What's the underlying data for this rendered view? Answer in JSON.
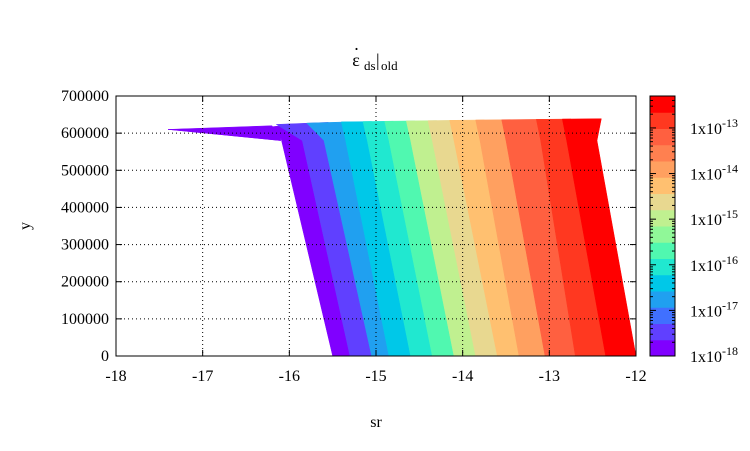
{
  "chart_data": {
    "type": "heatmap",
    "title": {
      "base": "ε",
      "sub_ds": "ds",
      "sep": "|",
      "sub_old": "old"
    },
    "xlabel": "sr",
    "ylabel": "y",
    "xlim": [
      -18,
      -12
    ],
    "ylim": [
      0,
      700000
    ],
    "x_ticks": [
      -18,
      -17,
      -16,
      -15,
      -14,
      -13,
      -12
    ],
    "x_tick_labels": [
      "-18",
      "-17",
      "-16",
      "-15",
      "-14",
      "-13",
      "-12"
    ],
    "y_ticks": [
      0,
      100000,
      200000,
      300000,
      400000,
      500000,
      600000,
      700000
    ],
    "y_tick_labels": [
      "0",
      "100000",
      "200000",
      "300000",
      "400000",
      "500000",
      "600000",
      "700000"
    ],
    "grid": true,
    "colorbar": {
      "scale": "log",
      "range_exponent": [
        -18,
        -12.3
      ],
      "tick_exponents": [
        -18,
        -17,
        -16,
        -15,
        -14,
        -13
      ],
      "tick_labels": [
        {
          "mant": "1x10",
          "exp": "-18"
        },
        {
          "mant": "1x10",
          "exp": "-17"
        },
        {
          "mant": "1x10",
          "exp": "-16"
        },
        {
          "mant": "1x10",
          "exp": "-15"
        },
        {
          "mant": "1x10",
          "exp": "-14"
        },
        {
          "mant": "1x10",
          "exp": "-13"
        }
      ],
      "colors": [
        "#8000ff",
        "#6040ff",
        "#4070ff",
        "#20a0f0",
        "#00c8e8",
        "#20e8d0",
        "#50f8b0",
        "#90f898",
        "#c0f090",
        "#e8d890",
        "#ffc070",
        "#ffa060",
        "#ff8050",
        "#ff6040",
        "#ff3820",
        "#ff0000"
      ]
    },
    "contour_band_bottom_x": [
      -15.5,
      -15.3,
      -15.05,
      -14.85,
      -14.6,
      -14.35,
      -14.1,
      -13.85,
      -13.6,
      -13.35,
      -13.05,
      -12.7,
      -12.35,
      -12.0
    ],
    "contour_band_top_x": [
      -16.1,
      -15.85,
      -15.6,
      -15.35,
      -15.1,
      -14.85,
      -14.6,
      -14.35,
      -14.1,
      -13.8,
      -13.5,
      -13.1,
      -12.8,
      -12.45
    ],
    "contour_boundary_y": 580000,
    "tip": {
      "x": -17.4,
      "y": 610000
    },
    "top_edge": [
      {
        "x": -16.5,
        "y": 620000
      },
      {
        "x": -15.5,
        "y": 630000
      },
      {
        "x": -14.0,
        "y": 635000
      },
      {
        "x": -12.0,
        "y": 640000
      }
    ]
  }
}
